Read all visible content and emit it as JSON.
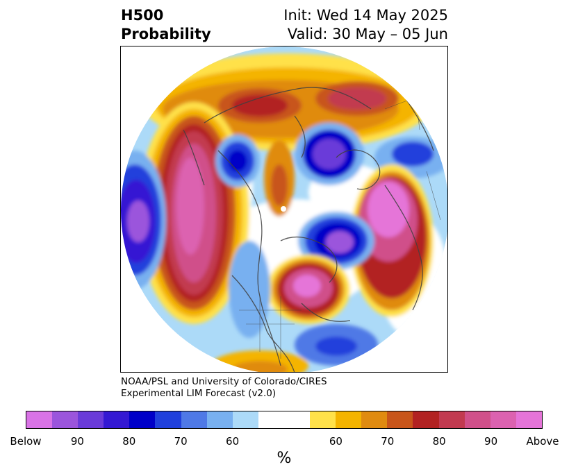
{
  "header": {
    "title_line1": "H500",
    "title_line2": "Probability",
    "init": "Init: Wed 14 May 2025",
    "valid": "Valid: 30 May – 05 Jun"
  },
  "credit": {
    "line1": "NOAA/PSL and University of Colorado/CIRES",
    "line2": "Experimental LIM Forecast (v2.0)"
  },
  "colorbar": {
    "unit": "%",
    "colors": [
      "#d973e6",
      "#9b55dc",
      "#6a3bd9",
      "#3419d3",
      "#0000c8",
      "#2040dc",
      "#4f79e6",
      "#78b0f0",
      "#acdaf8",
      "#ffffff",
      "#ffffff",
      "#ffe14a",
      "#f4b400",
      "#e08b10",
      "#c8551a",
      "#b22222",
      "#c23a50",
      "#d0508a",
      "#dc62b0",
      "#e574d8"
    ],
    "labels": [
      "Below",
      "90",
      "80",
      "70",
      "60",
      "60",
      "70",
      "80",
      "90",
      "Above"
    ]
  },
  "map": {
    "background": "#ffffff",
    "coastline_color": "#404040"
  }
}
